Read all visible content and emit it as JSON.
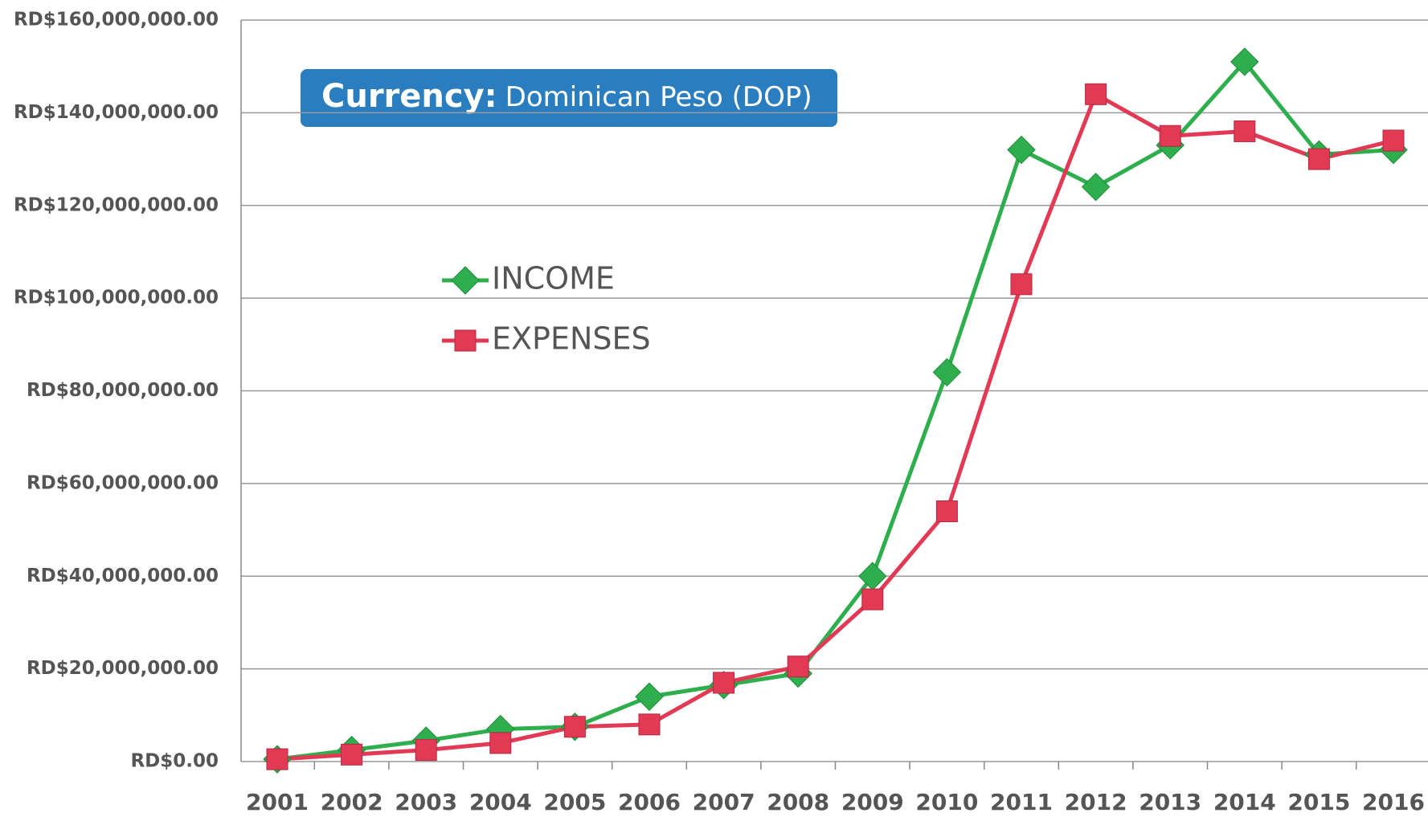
{
  "chart_data": {
    "type": "line",
    "annotation": {
      "label": "Currency:",
      "text": "Dominican Peso (DOP)"
    },
    "categories": [
      "2001",
      "2002",
      "2003",
      "2004",
      "2005",
      "2006",
      "2007",
      "2008",
      "2009",
      "2010",
      "2011",
      "2012",
      "2013",
      "2014",
      "2015",
      "2016"
    ],
    "series": [
      {
        "name": "INCOME",
        "color": "#2fae4e",
        "marker": "diamond",
        "values": [
          500000,
          2500000,
          4500000,
          7000000,
          7500000,
          14000000,
          16500000,
          19000000,
          40000000,
          84000000,
          132000000,
          124000000,
          133000000,
          151000000,
          131000000,
          132000000
        ]
      },
      {
        "name": "EXPENSES",
        "color": "#e23a55",
        "marker": "square",
        "values": [
          500000,
          1500000,
          2500000,
          4000000,
          7500000,
          8000000,
          17000000,
          20500000,
          35000000,
          54000000,
          103000000,
          144000000,
          135000000,
          136000000,
          130000000,
          134000000
        ]
      }
    ],
    "ylim": [
      0,
      160000000
    ],
    "yticks": [
      {
        "value": 0,
        "label": "RD$0.00"
      },
      {
        "value": 20000000,
        "label": "RD$20,000,000.00"
      },
      {
        "value": 40000000,
        "label": "RD$40,000,000.00"
      },
      {
        "value": 60000000,
        "label": "RD$60,000,000.00"
      },
      {
        "value": 80000000,
        "label": "RD$80,000,000.00"
      },
      {
        "value": 100000000,
        "label": "RD$100,000,000.00"
      },
      {
        "value": 120000000,
        "label": "RD$120,000,000.00"
      },
      {
        "value": 140000000,
        "label": "RD$140,000,000.00"
      },
      {
        "value": 160000000,
        "label": "RD$160,000,000.00"
      }
    ],
    "grid": true
  }
}
